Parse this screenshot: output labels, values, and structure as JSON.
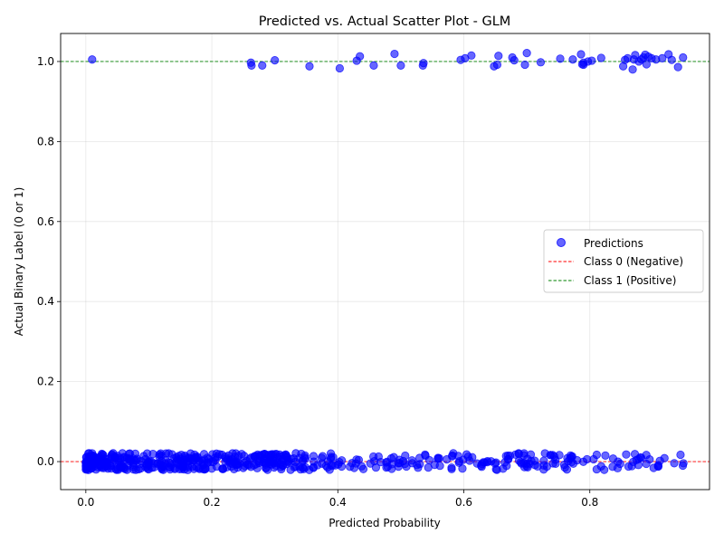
{
  "chart_data": {
    "type": "scatter",
    "title": "Predicted vs. Actual Scatter Plot - GLM",
    "xlabel": "Predicted Probability",
    "ylabel": "Actual Binary Label (0 or 1)",
    "xlim": [
      -0.04,
      0.99
    ],
    "ylim": [
      -0.07,
      1.07
    ],
    "x_ticks": [
      "0.0",
      "0.2",
      "0.4",
      "0.6",
      "0.8"
    ],
    "y_ticks": [
      "0.0",
      "0.2",
      "0.4",
      "0.6",
      "0.8",
      "1.0"
    ],
    "grid": true,
    "legend_position": "center-right",
    "legend": [
      {
        "label": "Predictions",
        "kind": "marker",
        "color": "#0000ff"
      },
      {
        "label": "Class 0 (Negative)",
        "kind": "dashed-line",
        "color": "#ff0000"
      },
      {
        "label": "Class 1 (Positive)",
        "kind": "dashed-line",
        "color": "#008000"
      }
    ],
    "reference_lines": [
      {
        "y": 0,
        "color": "#ff0000",
        "style": "dashed"
      },
      {
        "y": 1,
        "color": "#008000",
        "style": "dashed"
      }
    ],
    "series": [
      {
        "color": "#0000ff",
        "alpha": 0.6,
        "points_class1": [
          [
            0.01,
            1.005
          ],
          [
            0.262,
            0.997
          ],
          [
            0.263,
            0.99
          ],
          [
            0.28,
            0.99
          ],
          [
            0.3,
            1.003
          ],
          [
            0.355,
            0.988
          ],
          [
            0.403,
            0.983
          ],
          [
            0.43,
            1.002
          ],
          [
            0.435,
            1.013
          ],
          [
            0.457,
            0.99
          ],
          [
            0.49,
            1.019
          ],
          [
            0.5,
            0.99
          ],
          [
            0.535,
            0.99
          ],
          [
            0.536,
            0.996
          ],
          [
            0.595,
            1.004
          ],
          [
            0.602,
            1.008
          ],
          [
            0.612,
            1.015
          ],
          [
            0.648,
            0.988
          ],
          [
            0.653,
            0.992
          ],
          [
            0.655,
            1.014
          ],
          [
            0.677,
            1.01
          ],
          [
            0.68,
            1.003
          ],
          [
            0.697,
            0.992
          ],
          [
            0.7,
            1.021
          ],
          [
            0.722,
            0.998
          ],
          [
            0.753,
            1.007
          ],
          [
            0.773,
            1.005
          ],
          [
            0.786,
            1.018
          ],
          [
            0.788,
            0.993
          ],
          [
            0.79,
            0.992
          ],
          [
            0.79,
            0.997
          ],
          [
            0.797,
            1.0
          ],
          [
            0.803,
            1.002
          ],
          [
            0.818,
            1.009
          ],
          [
            0.853,
            0.988
          ],
          [
            0.856,
            1.004
          ],
          [
            0.86,
            1.008
          ],
          [
            0.868,
            0.98
          ],
          [
            0.87,
            1.005
          ],
          [
            0.872,
            1.016
          ],
          [
            0.878,
            1.0
          ],
          [
            0.882,
            1.005
          ],
          [
            0.885,
            1.01
          ],
          [
            0.888,
            1.017
          ],
          [
            0.89,
            0.993
          ],
          [
            0.893,
            1.012
          ],
          [
            0.898,
            1.008
          ],
          [
            0.905,
            1.005
          ],
          [
            0.915,
            1.008
          ],
          [
            0.925,
            1.018
          ],
          [
            0.93,
            1.004
          ],
          [
            0.94,
            0.986
          ],
          [
            0.948,
            1.01
          ]
        ],
        "class0_seed": 7,
        "class0_count": 560,
        "class0_x_range": [
          0.0,
          0.95
        ]
      }
    ]
  }
}
